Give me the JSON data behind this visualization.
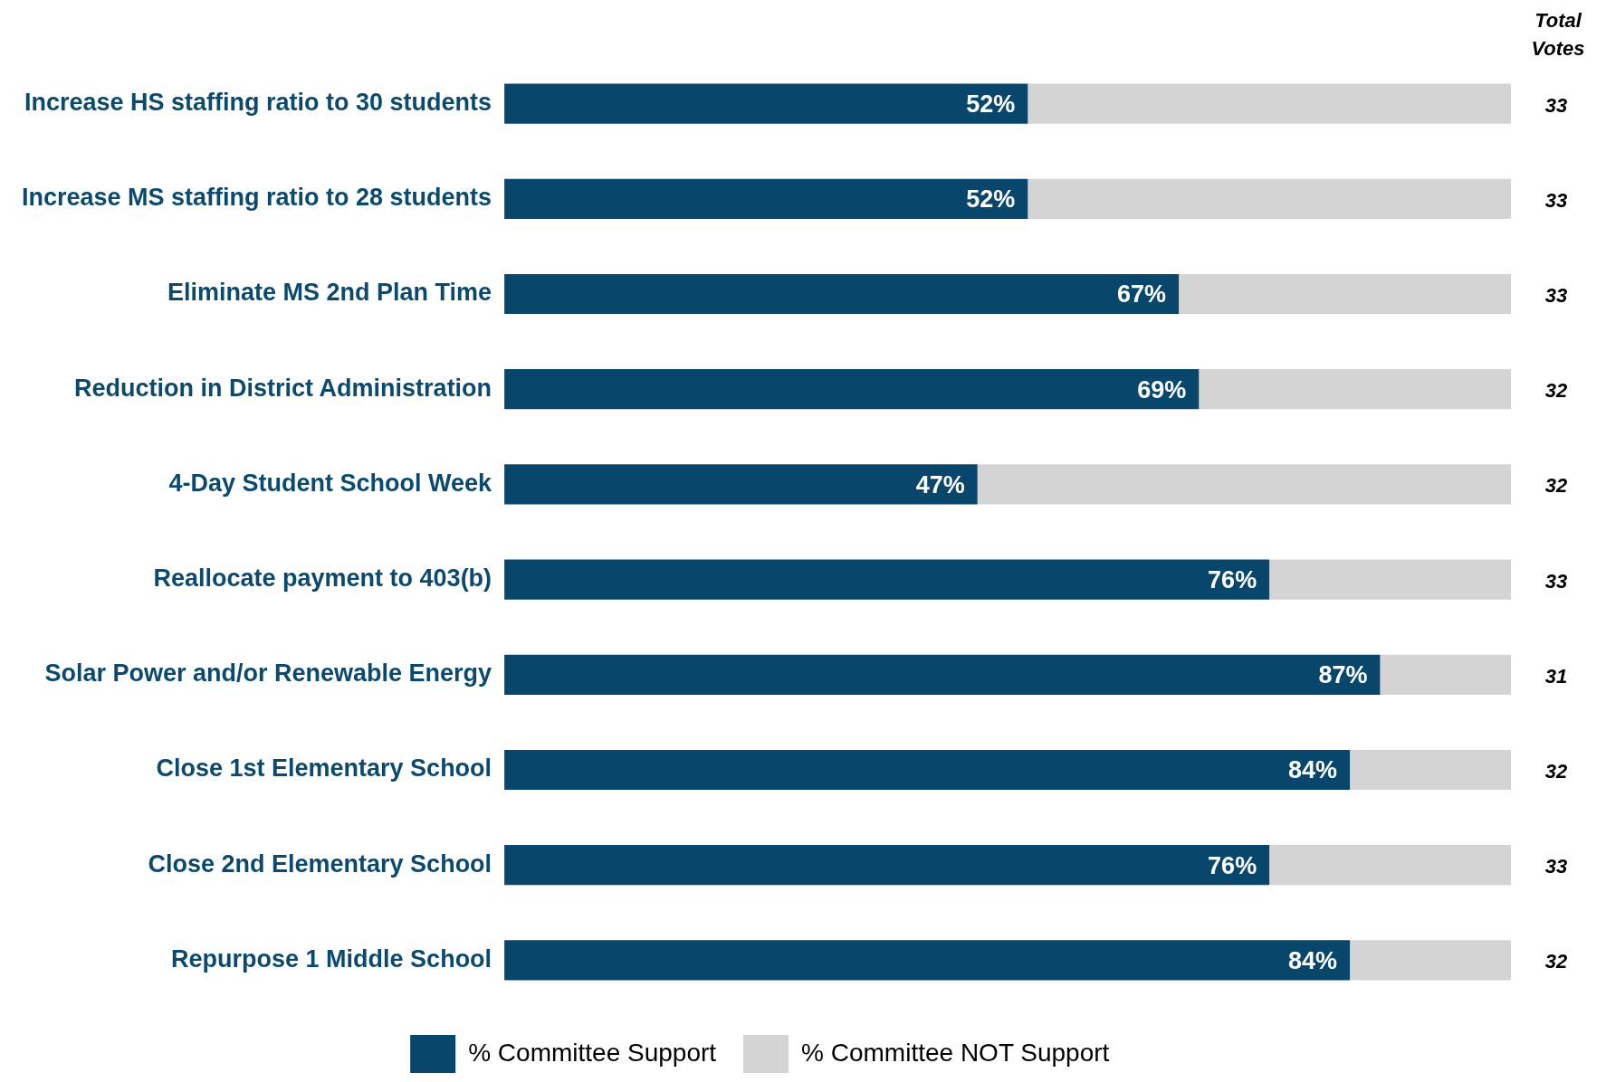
{
  "chart_data": {
    "type": "bar",
    "orientation": "horizontal",
    "stacked": true,
    "categories": [
      "Increase HS staffing ratio to 30 students",
      "Increase MS staffing ratio to 28 students",
      "Eliminate MS 2nd Plan Time",
      "Reduction in District Administration",
      "4-Day Student School Week",
      "Reallocate payment to 403(b)",
      "Solar Power and/or Renewable Energy",
      "Close 1st Elementary School",
      "Close 2nd Elementary School",
      "Repurpose 1 Middle School"
    ],
    "series": [
      {
        "name": "% Committee Support",
        "color": "#08466b",
        "values": [
          52,
          52,
          67,
          69,
          47,
          76,
          87,
          84,
          76,
          84
        ],
        "value_labels": [
          "52%",
          "52%",
          "67%",
          "69%",
          "47%",
          "76%",
          "87%",
          "84%",
          "76%",
          "84%"
        ]
      },
      {
        "name": "% Committee NOT Support",
        "color": "#d4d4d4",
        "values": [
          48,
          48,
          33,
          31,
          53,
          24,
          13,
          16,
          24,
          16
        ]
      }
    ],
    "xlim": [
      0,
      100
    ],
    "tick_labels": "y",
    "grid": false,
    "legend": "bottom",
    "annotations": [
      "Total Votes",
      "33",
      "33",
      "33",
      "32",
      "32",
      "33",
      "31",
      "32",
      "33",
      "32"
    ]
  }
}
